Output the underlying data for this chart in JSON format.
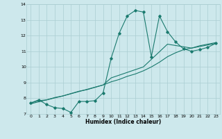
{
  "title": "",
  "xlabel": "Humidex (Indice chaleur)",
  "ylabel": "",
  "xlim": [
    -0.5,
    23.5
  ],
  "ylim": [
    7,
    14
  ],
  "xticks": [
    0,
    1,
    2,
    3,
    4,
    5,
    6,
    7,
    8,
    9,
    10,
    11,
    12,
    13,
    14,
    15,
    16,
    17,
    18,
    19,
    20,
    21,
    22,
    23
  ],
  "yticks": [
    7,
    8,
    9,
    10,
    11,
    12,
    13,
    14
  ],
  "bg_color": "#cde8ec",
  "grid_color": "#aacdd2",
  "line_color": "#1a7a6e",
  "line1_x": [
    0,
    1,
    2,
    3,
    4,
    5,
    6,
    7,
    8,
    9,
    10,
    11,
    12,
    13,
    14,
    15,
    16,
    17,
    18,
    19,
    20,
    21,
    22,
    23
  ],
  "line1_y": [
    7.7,
    7.9,
    7.6,
    7.4,
    7.35,
    7.1,
    7.8,
    7.8,
    7.85,
    8.35,
    10.55,
    12.15,
    13.25,
    13.6,
    13.5,
    10.65,
    13.25,
    12.25,
    11.6,
    11.15,
    11.0,
    11.1,
    11.25,
    11.5
  ],
  "line2_x": [
    0,
    1,
    2,
    3,
    4,
    5,
    6,
    7,
    8,
    9,
    10,
    11,
    12,
    13,
    14,
    15,
    16,
    17,
    18,
    19,
    20,
    21,
    22,
    23
  ],
  "line2_y": [
    7.7,
    7.85,
    7.9,
    8.05,
    8.15,
    8.3,
    8.45,
    8.55,
    8.7,
    8.85,
    9.05,
    9.2,
    9.4,
    9.55,
    9.75,
    10.0,
    10.3,
    10.65,
    10.9,
    11.1,
    11.2,
    11.35,
    11.45,
    11.55
  ],
  "line3_x": [
    0,
    4,
    9,
    10,
    14,
    17,
    20,
    23
  ],
  "line3_y": [
    7.65,
    8.15,
    8.85,
    9.3,
    10.0,
    11.45,
    11.2,
    11.5
  ]
}
